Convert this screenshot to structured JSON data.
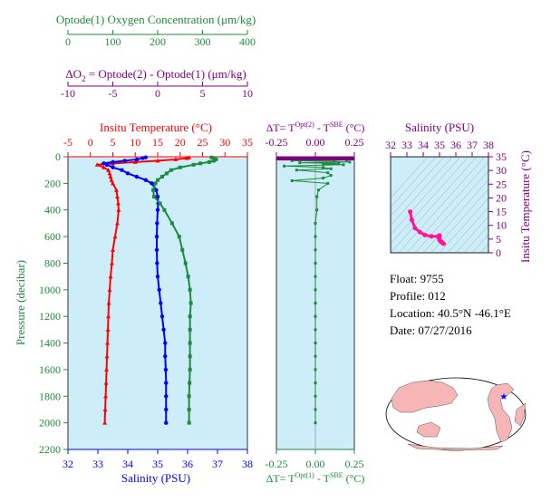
{
  "colors": {
    "oxygen": "#1e8a3c",
    "delta_o2": "#800080",
    "temperature": "#ff0000",
    "salinity": "#0000ff",
    "delta_t": "#1e8a3c",
    "ts_points": "#ff1493",
    "panel_bg": "#cdeef8",
    "map_land": "#f6b6b6",
    "map_ocean": "#ffffff",
    "float_marker": "#0000ff"
  },
  "titles": {
    "oxygen": "Optode(1) Oxygen Concentration (μm/kg)",
    "delta_o2_prefix": "ΔO",
    "delta_o2_sub": "2",
    "delta_o2_rest": " = Optode(2) - Optode(1)    (μm/kg)",
    "temperature": "Insitu Temperature (°C)",
    "salinity_bottom": "Salinity (PSU)",
    "pressure": "Pressure (decibar)",
    "dt_top_a": "ΔT= T",
    "dt_top_sup1": "Opt(2)",
    "dt_top_b": " - T",
    "dt_top_sup2": "SBE",
    "dt_top_c": " (°C)",
    "dt_bot_a": "ΔT= T",
    "dt_bot_sup1": "Opt(1)",
    "dt_bot_b": " - T",
    "dt_bot_sup2": "SBE",
    "dt_bot_c": " (°C)",
    "ts_salinity": "Salinity (PSU)",
    "ts_temperature": "Insitu Temperature (°C)"
  },
  "info": {
    "float": "Float:  9755",
    "profile": "Profile:  012",
    "location": "Location:  40.5°N  -46.1°E",
    "date": "Date:  07/27/2016"
  },
  "chart_data": [
    {
      "type": "line",
      "panel": "main",
      "axes": {
        "pressure": {
          "range": [
            0,
            2200
          ],
          "ticks": [
            0,
            200,
            400,
            600,
            800,
            1000,
            1200,
            1400,
            1600,
            1800,
            2000,
            2200
          ],
          "inverted": true
        },
        "oxygen": {
          "range": [
            0,
            400
          ],
          "ticks": [
            0,
            100,
            200,
            300,
            400
          ]
        },
        "delta_o2": {
          "range": [
            -10,
            10
          ],
          "ticks": [
            -10,
            -5,
            0,
            5,
            10
          ]
        },
        "temperature": {
          "range": [
            -5,
            35
          ],
          "ticks": [
            -5,
            0,
            5,
            10,
            15,
            20,
            25,
            30,
            35
          ]
        },
        "salinity": {
          "range": [
            32,
            38
          ],
          "ticks": [
            32,
            33,
            34,
            35,
            36,
            37,
            38
          ]
        }
      },
      "series": [
        {
          "key": "temperature",
          "axis": "temperature",
          "pressure": [
            5,
            10,
            20,
            30,
            40,
            50,
            60,
            80,
            100,
            125,
            150,
            175,
            200,
            250,
            300,
            350,
            400,
            500,
            600,
            700,
            800,
            900,
            1000,
            1100,
            1200,
            1300,
            1400,
            1500,
            1600,
            1700,
            1800,
            1900,
            2000
          ],
          "values": [
            22.0,
            21.5,
            19.0,
            15.0,
            10.0,
            5.0,
            1.5,
            3.0,
            4.0,
            4.3,
            4.5,
            4.7,
            5.0,
            5.8,
            6.0,
            6.2,
            6.3,
            6.0,
            5.5,
            5.0,
            4.8,
            4.5,
            4.3,
            4.1,
            4.0,
            3.9,
            3.8,
            3.7,
            3.6,
            3.5,
            3.4,
            3.3,
            3.2
          ]
        },
        {
          "key": "salinity",
          "axis": "salinity",
          "pressure": [
            5,
            10,
            20,
            30,
            40,
            50,
            60,
            80,
            100,
            125,
            150,
            175,
            200,
            250,
            300,
            350,
            400,
            500,
            600,
            700,
            800,
            900,
            1000,
            1100,
            1200,
            1300,
            1400,
            1500,
            1600,
            1700,
            1800,
            1900,
            2000
          ],
          "values": [
            34.6,
            34.5,
            34.3,
            33.9,
            33.5,
            33.2,
            33.3,
            33.5,
            33.8,
            34.0,
            34.3,
            34.6,
            34.8,
            34.95,
            35.0,
            35.02,
            35.0,
            34.98,
            34.97,
            34.97,
            34.98,
            35.0,
            35.05,
            35.1,
            35.15,
            35.2,
            35.25,
            35.25,
            35.27,
            35.28,
            35.28,
            35.28,
            35.28
          ]
        },
        {
          "key": "oxygen",
          "axis": "oxygen",
          "pressure": [
            5,
            10,
            20,
            30,
            40,
            50,
            60,
            80,
            100,
            125,
            150,
            175,
            200,
            250,
            300,
            350,
            400,
            500,
            600,
            700,
            800,
            900,
            1000,
            1100,
            1200,
            1300,
            1400,
            1500,
            1600,
            1700,
            1800,
            1900,
            2000
          ],
          "values": [
            320,
            325,
            330,
            325,
            315,
            295,
            280,
            250,
            230,
            220,
            210,
            200,
            195,
            190,
            192,
            205,
            215,
            232,
            248,
            255,
            262,
            268,
            272,
            274,
            272,
            272,
            272,
            272,
            272,
            271,
            270,
            270,
            270
          ]
        }
      ]
    },
    {
      "type": "line",
      "panel": "delta_t",
      "axes": {
        "delta_t": {
          "range": [
            -0.25,
            0.25
          ],
          "ticks": [
            -0.25,
            0.0,
            0.25
          ]
        },
        "pressure": {
          "range": [
            0,
            2200
          ],
          "inverted": true
        }
      },
      "series": [
        {
          "key": "dt_opt2",
          "pressure": [
            10,
            15,
            20,
            25,
            30,
            35,
            40,
            45,
            50,
            55,
            60,
            70,
            80,
            90,
            100,
            120,
            140,
            160,
            180,
            200,
            250,
            300,
            400,
            500,
            600,
            700,
            800,
            900,
            1000,
            1100,
            1200,
            1300,
            1400,
            1500,
            1600,
            1700,
            1800,
            1900,
            2000
          ],
          "values": [
            0.1,
            0.18,
            -0.05,
            0.2,
            -0.15,
            0.12,
            0.22,
            -0.1,
            0.15,
            0.05,
            0.18,
            -0.2,
            0.05,
            0.1,
            -0.12,
            0.08,
            0.1,
            0.05,
            -0.15,
            0.08,
            0.02,
            0.01,
            0.01,
            0.0,
            0.0,
            0.0,
            0.0,
            0.0,
            0.0,
            0.0,
            0.0,
            0.0,
            0.0,
            0.0,
            0.0,
            0.0,
            0.0,
            0.0,
            0.0
          ]
        }
      ]
    },
    {
      "type": "scatter",
      "panel": "ts",
      "axes": {
        "salinity": {
          "range": [
            32,
            38
          ],
          "ticks": [
            32,
            33,
            34,
            35,
            36,
            37,
            38
          ]
        },
        "temperature": {
          "range": [
            0,
            35
          ],
          "ticks": [
            0,
            5,
            10,
            15,
            20,
            25,
            30,
            35
          ]
        }
      },
      "series": [
        {
          "key": "ts_profile",
          "salinity": [
            33.2,
            33.3,
            33.5,
            33.8,
            34.1,
            34.5,
            34.9,
            35.0,
            35.0,
            34.99,
            34.98,
            34.99,
            35.0,
            35.02,
            35.05,
            35.1,
            35.15,
            35.2,
            35.25
          ],
          "temperature": [
            15.0,
            12.0,
            9.0,
            7.5,
            6.5,
            6.0,
            6.0,
            6.2,
            6.3,
            6.0,
            5.5,
            5.0,
            4.8,
            4.5,
            4.3,
            4.0,
            3.8,
            3.5,
            3.3
          ]
        }
      ]
    }
  ]
}
